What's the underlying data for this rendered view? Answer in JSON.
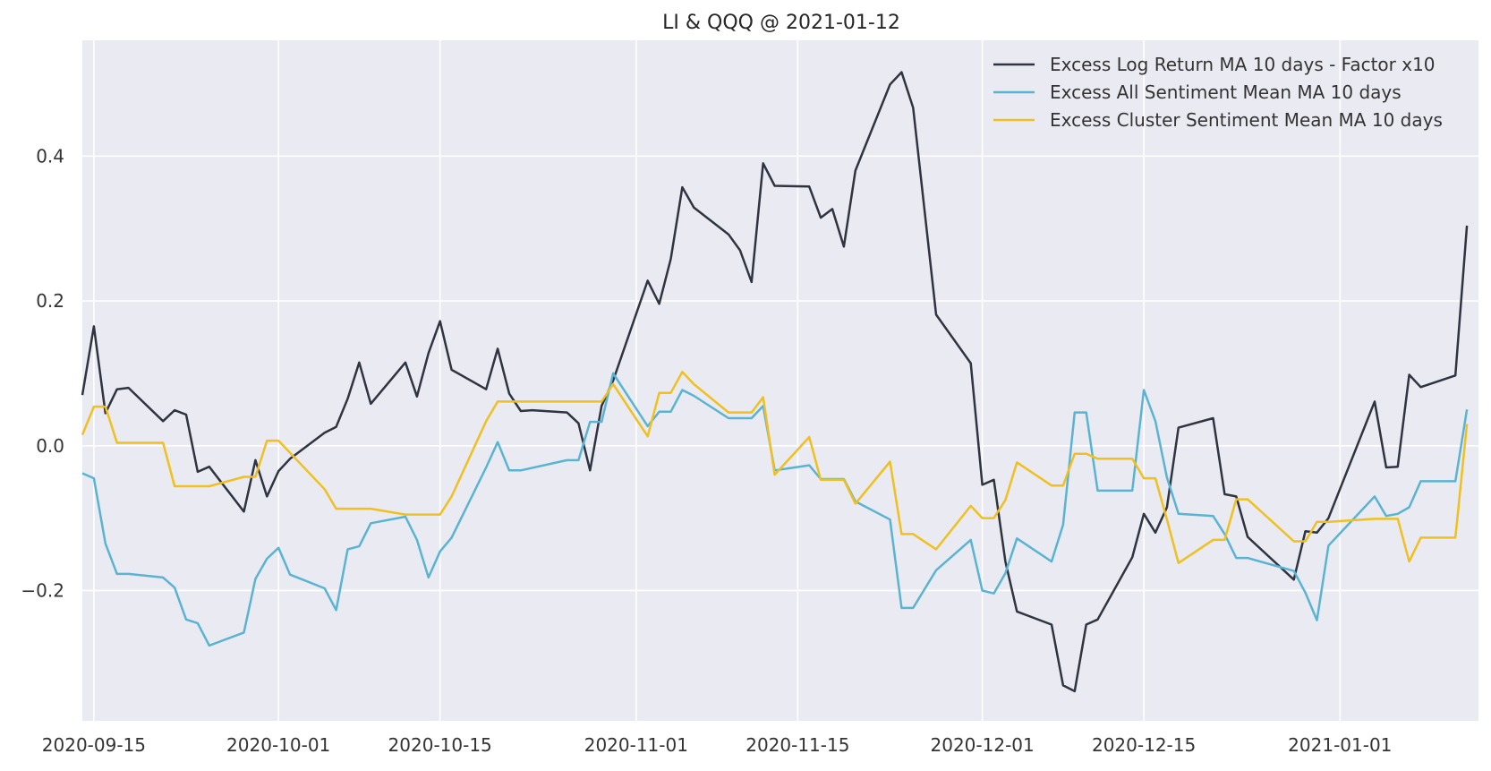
{
  "chart_data": {
    "type": "line",
    "title": "LI & QQQ @ 2021-01-12",
    "xlabel": "",
    "ylabel": "",
    "x_tick_labels": [
      "2020-09-15",
      "2020-10-01",
      "2020-10-15",
      "2020-11-01",
      "2020-11-15",
      "2020-12-01",
      "2020-12-15",
      "2021-01-01"
    ],
    "y_tick_labels": [
      "−0.2",
      "0.0",
      "0.2",
      "0.4"
    ],
    "xlim": [
      "2020-09-14",
      "2021-01-13"
    ],
    "ylim": [
      -0.38,
      0.56
    ],
    "grid": true,
    "legend_position": "top-right",
    "colors": {
      "background": "#eaeaf2",
      "grid": "#ffffff",
      "series": [
        "#2e3440",
        "#5ab4d1",
        "#f0c020"
      ]
    },
    "series": [
      {
        "name": "Excess Log Return MA 10 days - Factor x10",
        "points": [
          [
            "2020-09-14",
            0.07
          ],
          [
            "2020-09-15",
            0.165
          ],
          [
            "2020-09-16",
            0.045
          ],
          [
            "2020-09-17",
            0.078
          ],
          [
            "2020-09-18",
            0.08
          ],
          [
            "2020-09-21",
            0.034
          ],
          [
            "2020-09-22",
            0.049
          ],
          [
            "2020-09-23",
            0.043
          ],
          [
            "2020-09-24",
            -0.036
          ],
          [
            "2020-09-25",
            -0.029
          ],
          [
            "2020-09-28",
            -0.091
          ],
          [
            "2020-09-29",
            -0.02
          ],
          [
            "2020-09-30",
            -0.07
          ],
          [
            "2020-10-01",
            -0.035
          ],
          [
            "2020-10-02",
            -0.018
          ],
          [
            "2020-10-05",
            0.018
          ],
          [
            "2020-10-06",
            0.026
          ],
          [
            "2020-10-07",
            0.065
          ],
          [
            "2020-10-08",
            0.115
          ],
          [
            "2020-10-09",
            0.058
          ],
          [
            "2020-10-12",
            0.115
          ],
          [
            "2020-10-13",
            0.068
          ],
          [
            "2020-10-14",
            0.128
          ],
          [
            "2020-10-15",
            0.172
          ],
          [
            "2020-10-16",
            0.105
          ],
          [
            "2020-10-19",
            0.078
          ],
          [
            "2020-10-20",
            0.134
          ],
          [
            "2020-10-21",
            0.072
          ],
          [
            "2020-10-22",
            0.048
          ],
          [
            "2020-10-23",
            0.049
          ],
          [
            "2020-10-26",
            0.046
          ],
          [
            "2020-10-27",
            0.031
          ],
          [
            "2020-10-28",
            -0.034
          ],
          [
            "2020-10-29",
            0.055
          ],
          [
            "2020-10-30",
            0.09
          ],
          [
            "2020-11-02",
            0.228
          ],
          [
            "2020-11-03",
            0.196
          ],
          [
            "2020-11-04",
            0.258
          ],
          [
            "2020-11-05",
            0.357
          ],
          [
            "2020-11-06",
            0.329
          ],
          [
            "2020-11-09",
            0.292
          ],
          [
            "2020-11-10",
            0.27
          ],
          [
            "2020-11-11",
            0.226
          ],
          [
            "2020-11-12",
            0.39
          ],
          [
            "2020-11-13",
            0.359
          ],
          [
            "2020-11-16",
            0.358
          ],
          [
            "2020-11-17",
            0.315
          ],
          [
            "2020-11-18",
            0.327
          ],
          [
            "2020-11-19",
            0.275
          ],
          [
            "2020-11-20",
            0.38
          ],
          [
            "2020-11-23",
            0.499
          ],
          [
            "2020-11-24",
            0.516
          ],
          [
            "2020-11-25",
            0.467
          ],
          [
            "2020-11-27",
            0.181
          ],
          [
            "2020-11-30",
            0.114
          ],
          [
            "2020-12-01",
            -0.054
          ],
          [
            "2020-12-02",
            -0.047
          ],
          [
            "2020-12-03",
            -0.16
          ],
          [
            "2020-12-04",
            -0.229
          ],
          [
            "2020-12-07",
            -0.247
          ],
          [
            "2020-12-08",
            -0.331
          ],
          [
            "2020-12-09",
            -0.339
          ],
          [
            "2020-12-10",
            -0.247
          ],
          [
            "2020-12-11",
            -0.24
          ],
          [
            "2020-12-14",
            -0.154
          ],
          [
            "2020-12-15",
            -0.094
          ],
          [
            "2020-12-16",
            -0.12
          ],
          [
            "2020-12-17",
            -0.085
          ],
          [
            "2020-12-18",
            0.025
          ],
          [
            "2020-12-21",
            0.038
          ],
          [
            "2020-12-22",
            -0.067
          ],
          [
            "2020-12-23",
            -0.07
          ],
          [
            "2020-12-24",
            -0.126
          ],
          [
            "2020-12-28",
            -0.185
          ],
          [
            "2020-12-29",
            -0.118
          ],
          [
            "2020-12-30",
            -0.12
          ],
          [
            "2020-12-31",
            -0.1
          ],
          [
            "2021-01-04",
            0.061
          ],
          [
            "2021-01-05",
            -0.03
          ],
          [
            "2021-01-06",
            -0.029
          ],
          [
            "2021-01-07",
            0.098
          ],
          [
            "2021-01-08",
            0.081
          ],
          [
            "2021-01-11",
            0.097
          ],
          [
            "2021-01-12",
            0.304
          ]
        ]
      },
      {
        "name": "Excess All Sentiment Mean MA 10 days",
        "points": [
          [
            "2020-09-14",
            -0.038
          ],
          [
            "2020-09-15",
            -0.045
          ],
          [
            "2020-09-16",
            -0.135
          ],
          [
            "2020-09-17",
            -0.177
          ],
          [
            "2020-09-18",
            -0.177
          ],
          [
            "2020-09-21",
            -0.182
          ],
          [
            "2020-09-22",
            -0.196
          ],
          [
            "2020-09-23",
            -0.24
          ],
          [
            "2020-09-24",
            -0.245
          ],
          [
            "2020-09-25",
            -0.276
          ],
          [
            "2020-09-28",
            -0.258
          ],
          [
            "2020-09-29",
            -0.184
          ],
          [
            "2020-09-30",
            -0.156
          ],
          [
            "2020-10-01",
            -0.141
          ],
          [
            "2020-10-02",
            -0.178
          ],
          [
            "2020-10-05",
            -0.197
          ],
          [
            "2020-10-06",
            -0.227
          ],
          [
            "2020-10-07",
            -0.143
          ],
          [
            "2020-10-08",
            -0.139
          ],
          [
            "2020-10-09",
            -0.107
          ],
          [
            "2020-10-12",
            -0.098
          ],
          [
            "2020-10-13",
            -0.13
          ],
          [
            "2020-10-14",
            -0.182
          ],
          [
            "2020-10-15",
            -0.146
          ],
          [
            "2020-10-16",
            -0.127
          ],
          [
            "2020-10-19",
            -0.03
          ],
          [
            "2020-10-20",
            0.005
          ],
          [
            "2020-10-21",
            -0.034
          ],
          [
            "2020-10-22",
            -0.034
          ],
          [
            "2020-10-26",
            -0.02
          ],
          [
            "2020-10-27",
            -0.02
          ],
          [
            "2020-10-28",
            0.033
          ],
          [
            "2020-10-29",
            0.033
          ],
          [
            "2020-10-30",
            0.1
          ],
          [
            "2020-11-02",
            0.027
          ],
          [
            "2020-11-03",
            0.047
          ],
          [
            "2020-11-04",
            0.047
          ],
          [
            "2020-11-05",
            0.077
          ],
          [
            "2020-11-06",
            0.069
          ],
          [
            "2020-11-09",
            0.038
          ],
          [
            "2020-11-10",
            0.038
          ],
          [
            "2020-11-11",
            0.038
          ],
          [
            "2020-11-12",
            0.055
          ],
          [
            "2020-11-13",
            -0.034
          ],
          [
            "2020-11-16",
            -0.027
          ],
          [
            "2020-11-17",
            -0.046
          ],
          [
            "2020-11-18",
            -0.046
          ],
          [
            "2020-11-19",
            -0.046
          ],
          [
            "2020-11-20",
            -0.077
          ],
          [
            "2020-11-23",
            -0.102
          ],
          [
            "2020-11-24",
            -0.224
          ],
          [
            "2020-11-25",
            -0.224
          ],
          [
            "2020-11-27",
            -0.172
          ],
          [
            "2020-11-30",
            -0.13
          ],
          [
            "2020-12-01",
            -0.2
          ],
          [
            "2020-12-02",
            -0.204
          ],
          [
            "2020-12-03",
            -0.176
          ],
          [
            "2020-12-04",
            -0.128
          ],
          [
            "2020-12-07",
            -0.16
          ],
          [
            "2020-12-08",
            -0.109
          ],
          [
            "2020-12-09",
            0.046
          ],
          [
            "2020-12-10",
            0.046
          ],
          [
            "2020-12-11",
            -0.062
          ],
          [
            "2020-12-14",
            -0.062
          ],
          [
            "2020-12-15",
            0.077
          ],
          [
            "2020-12-16",
            0.034
          ],
          [
            "2020-12-17",
            -0.044
          ],
          [
            "2020-12-18",
            -0.094
          ],
          [
            "2020-12-21",
            -0.097
          ],
          [
            "2020-12-22",
            -0.122
          ],
          [
            "2020-12-23",
            -0.155
          ],
          [
            "2020-12-24",
            -0.155
          ],
          [
            "2020-12-28",
            -0.173
          ],
          [
            "2020-12-29",
            -0.203
          ],
          [
            "2020-12-30",
            -0.241
          ],
          [
            "2020-12-31",
            -0.138
          ],
          [
            "2021-01-04",
            -0.07
          ],
          [
            "2021-01-05",
            -0.097
          ],
          [
            "2021-01-06",
            -0.094
          ],
          [
            "2021-01-07",
            -0.085
          ],
          [
            "2021-01-08",
            -0.049
          ],
          [
            "2021-01-11",
            -0.049
          ],
          [
            "2021-01-12",
            0.05
          ]
        ]
      },
      {
        "name": "Excess Cluster Sentiment Mean MA 10 days",
        "points": [
          [
            "2020-09-14",
            0.015
          ],
          [
            "2020-09-15",
            0.054
          ],
          [
            "2020-09-16",
            0.054
          ],
          [
            "2020-09-17",
            0.004
          ],
          [
            "2020-09-18",
            0.004
          ],
          [
            "2020-09-21",
            0.004
          ],
          [
            "2020-09-22",
            -0.056
          ],
          [
            "2020-09-23",
            -0.056
          ],
          [
            "2020-09-24",
            -0.056
          ],
          [
            "2020-09-25",
            -0.056
          ],
          [
            "2020-09-28",
            -0.043
          ],
          [
            "2020-09-29",
            -0.043
          ],
          [
            "2020-09-30",
            0.007
          ],
          [
            "2020-10-01",
            0.007
          ],
          [
            "2020-10-05",
            -0.06
          ],
          [
            "2020-10-06",
            -0.087
          ],
          [
            "2020-10-07",
            -0.087
          ],
          [
            "2020-10-08",
            -0.087
          ],
          [
            "2020-10-09",
            -0.087
          ],
          [
            "2020-10-12",
            -0.095
          ],
          [
            "2020-10-13",
            -0.095
          ],
          [
            "2020-10-14",
            -0.095
          ],
          [
            "2020-10-15",
            -0.095
          ],
          [
            "2020-10-16",
            -0.07
          ],
          [
            "2020-10-19",
            0.034
          ],
          [
            "2020-10-20",
            0.061
          ],
          [
            "2020-10-21",
            0.061
          ],
          [
            "2020-10-22",
            0.061
          ],
          [
            "2020-10-23",
            0.061
          ],
          [
            "2020-10-26",
            0.061
          ],
          [
            "2020-10-27",
            0.061
          ],
          [
            "2020-10-28",
            0.061
          ],
          [
            "2020-10-29",
            0.061
          ],
          [
            "2020-10-30",
            0.085
          ],
          [
            "2020-11-02",
            0.013
          ],
          [
            "2020-11-03",
            0.073
          ],
          [
            "2020-11-04",
            0.073
          ],
          [
            "2020-11-05",
            0.102
          ],
          [
            "2020-11-06",
            0.085
          ],
          [
            "2020-11-09",
            0.046
          ],
          [
            "2020-11-10",
            0.046
          ],
          [
            "2020-11-11",
            0.046
          ],
          [
            "2020-11-12",
            0.067
          ],
          [
            "2020-11-13",
            -0.04
          ],
          [
            "2020-11-16",
            0.012
          ],
          [
            "2020-11-17",
            -0.047
          ],
          [
            "2020-11-18",
            -0.047
          ],
          [
            "2020-11-19",
            -0.047
          ],
          [
            "2020-11-20",
            -0.08
          ],
          [
            "2020-11-23",
            -0.022
          ],
          [
            "2020-11-24",
            -0.122
          ],
          [
            "2020-11-25",
            -0.122
          ],
          [
            "2020-11-27",
            -0.143
          ],
          [
            "2020-11-30",
            -0.083
          ],
          [
            "2020-12-01",
            -0.1
          ],
          [
            "2020-12-02",
            -0.1
          ],
          [
            "2020-12-03",
            -0.075
          ],
          [
            "2020-12-04",
            -0.023
          ],
          [
            "2020-12-07",
            -0.055
          ],
          [
            "2020-12-08",
            -0.055
          ],
          [
            "2020-12-09",
            -0.011
          ],
          [
            "2020-12-10",
            -0.011
          ],
          [
            "2020-12-11",
            -0.018
          ],
          [
            "2020-12-14",
            -0.018
          ],
          [
            "2020-12-15",
            -0.045
          ],
          [
            "2020-12-16",
            -0.045
          ],
          [
            "2020-12-17",
            -0.102
          ],
          [
            "2020-12-18",
            -0.162
          ],
          [
            "2020-12-21",
            -0.13
          ],
          [
            "2020-12-22",
            -0.13
          ],
          [
            "2020-12-23",
            -0.074
          ],
          [
            "2020-12-24",
            -0.074
          ],
          [
            "2020-12-28",
            -0.132
          ],
          [
            "2020-12-29",
            -0.132
          ],
          [
            "2020-12-30",
            -0.105
          ],
          [
            "2020-12-31",
            -0.105
          ],
          [
            "2021-01-04",
            -0.101
          ],
          [
            "2021-01-05",
            -0.101
          ],
          [
            "2021-01-06",
            -0.101
          ],
          [
            "2021-01-07",
            -0.16
          ],
          [
            "2021-01-08",
            -0.127
          ],
          [
            "2021-01-11",
            -0.127
          ],
          [
            "2021-01-12",
            0.03
          ]
        ]
      }
    ]
  }
}
